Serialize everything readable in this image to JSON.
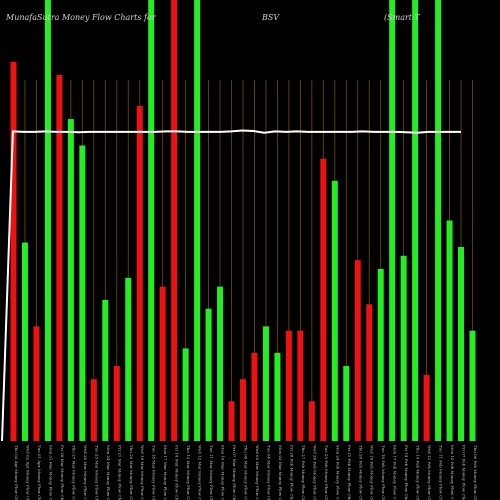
{
  "header": {
    "left": "MunafaSutra  Money Flow  Charts for",
    "symbol": "BSV",
    "right": "(Smart-T"
  },
  "chart_data": {
    "type": "bar",
    "title": "MunafaSutra Money Flow Charts for BSV",
    "ylim": [
      0,
      100
    ],
    "grid": "vertical",
    "colors": {
      "up": "#22ee22",
      "down": "#ee1111",
      "grid": "#7a4a0a",
      "line": "#ffffff",
      "text": "#d0d0d0"
    },
    "bars": [
      {
        "label": "Thu 03 Apr Money Flow Chart",
        "value": 86,
        "color": "down"
      },
      {
        "label": "Wed 02 Apr Money Flow Chart",
        "value": 45,
        "color": "up"
      },
      {
        "label": "Tue 01 Apr Money Flow Chart",
        "value": 26,
        "color": "down"
      },
      {
        "label": "Mon 31 Mar Money Flow Chart",
        "value": 100,
        "color": "up"
      },
      {
        "label": "Fri 28 Mar Money Flow Chart",
        "value": 83,
        "color": "down"
      },
      {
        "label": "Thu 27 Mar Money Flow Chart",
        "value": 73,
        "color": "up"
      },
      {
        "label": "Wed 26 Mar Money Flow Chart",
        "value": 67,
        "color": "up"
      },
      {
        "label": "Tue 25 Mar Money Flow Chart",
        "value": 14,
        "color": "down"
      },
      {
        "label": "Mon 24 Mar Money Flow Chart",
        "value": 32,
        "color": "up"
      },
      {
        "label": "Fri 21 Mar Money Flow Chart",
        "value": 17,
        "color": "down"
      },
      {
        "label": "Thu 20 Mar Money Flow Chart",
        "value": 37,
        "color": "up"
      },
      {
        "label": "Wed 19 Mar Money Flow Chart",
        "value": 76,
        "color": "down"
      },
      {
        "label": "Tue 18 Mar Money Flow Chart",
        "value": 100,
        "color": "up"
      },
      {
        "label": "Mon 17 Mar Money Flow Chart",
        "value": 35,
        "color": "down"
      },
      {
        "label": "Fri 14 Mar Money Flow Chart",
        "value": 100,
        "color": "down"
      },
      {
        "label": "Thu 13 Mar Money Flow Chart",
        "value": 21,
        "color": "up"
      },
      {
        "label": "Wed 12 Mar Money Flow Chart",
        "value": 100,
        "color": "up"
      },
      {
        "label": "Tue 11 Mar Money Flow Chart",
        "value": 30,
        "color": "up"
      },
      {
        "label": "Mon 10 Mar Money Flow Chart",
        "value": 35,
        "color": "up"
      },
      {
        "label": "Fri 07 Mar Money Flow Chart",
        "value": 9,
        "color": "down"
      },
      {
        "label": "Thu 06 Mar Money Flow Chart",
        "value": 14,
        "color": "down"
      },
      {
        "label": "Wed 05 Mar Money Flow Chart",
        "value": 20,
        "color": "down"
      },
      {
        "label": "Tue 04 Mar Money Flow Chart",
        "value": 26,
        "color": "up"
      },
      {
        "label": "Mon 03 Mar Money Flow Chart",
        "value": 20,
        "color": "up"
      },
      {
        "label": "Fri 28 Feb Money Flow Chart",
        "value": 25,
        "color": "down"
      },
      {
        "label": "Thu 27 Feb Money Flow Chart",
        "value": 25,
        "color": "down"
      },
      {
        "label": "Wed 26 Feb Money Flow Chart",
        "value": 9,
        "color": "down"
      },
      {
        "label": "Tue 25 Feb Money Flow Chart",
        "value": 64,
        "color": "down"
      },
      {
        "label": "Mon 24 Feb Money Flow Chart",
        "value": 59,
        "color": "up"
      },
      {
        "label": "Fri 21 Feb Money Flow Chart",
        "value": 17,
        "color": "up"
      },
      {
        "label": "Thu 20 Feb Money Flow Chart",
        "value": 41,
        "color": "down"
      },
      {
        "label": "Wed 19 Feb Money Flow Chart",
        "value": 31,
        "color": "down"
      },
      {
        "label": "Tue 18 Feb Money Flow Chart",
        "value": 39,
        "color": "up"
      },
      {
        "label": "Mon 17 Feb Money Flow Chart",
        "value": 100,
        "color": "up"
      },
      {
        "label": "Fri 14 Feb Money Flow Chart",
        "value": 42,
        "color": "up"
      },
      {
        "label": "Thu 13 Feb Money Flow Chart",
        "value": 100,
        "color": "up"
      },
      {
        "label": "Wed 12 Feb Money Flow Chart",
        "value": 15,
        "color": "down"
      },
      {
        "label": "Tue 11 Feb Money Flow Chart",
        "value": 100,
        "color": "up"
      },
      {
        "label": "Mon 10 Feb Money Flow Chart",
        "value": 50,
        "color": "up"
      },
      {
        "label": "Fri 07 Feb Money Flow Chart",
        "value": 44,
        "color": "up"
      },
      {
        "label": "Thu 06 Feb Money Flow Chart",
        "value": 25,
        "color": "up"
      }
    ],
    "line": [
      0,
      70.2,
      70.1,
      70.1,
      70.2,
      70.1,
      70.1,
      70.0,
      70.1,
      70.1,
      70.1,
      70.1,
      70.1,
      70.1,
      70.1,
      70.2,
      70.2,
      70.1,
      70.1,
      70.1,
      70.1,
      70.2,
      70.4,
      70.3,
      69.9,
      70.2,
      70.1,
      70.2,
      70.1,
      70.1,
      70.1,
      70.1,
      70.1,
      70.2,
      70.1,
      70.1,
      70.1,
      70.0,
      69.9,
      70.1,
      70.1,
      70.1,
      70.1
    ]
  }
}
